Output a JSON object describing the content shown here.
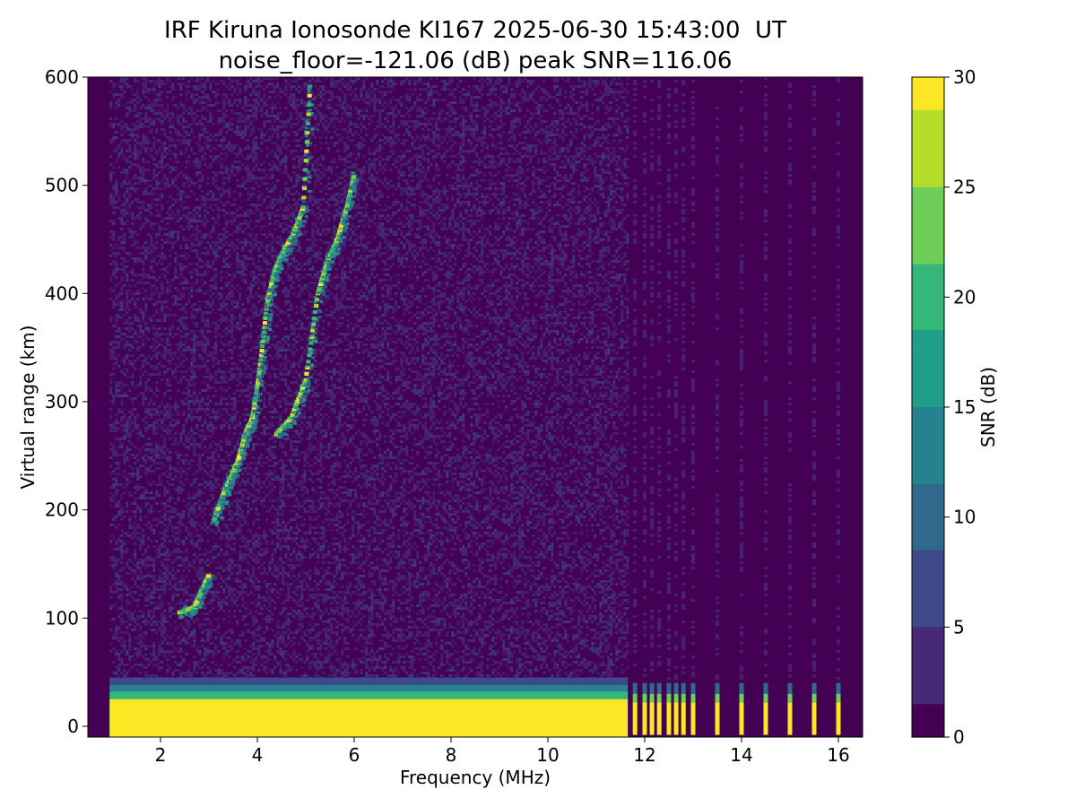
{
  "chart_data": {
    "type": "heatmap",
    "title": "IRF Kiruna Ionosonde KI167 2025-06-30 15:43:00  UT",
    "subtitle": "noise_floor=-121.06 (dB) peak SNR=116.06",
    "xlabel": "Frequency (MHz)",
    "ylabel": "Virtual range (km)",
    "xlim": [
      0.5,
      16.5
    ],
    "ylim": [
      -10,
      600
    ],
    "x_ticks": [
      2,
      4,
      6,
      8,
      10,
      12,
      14,
      16
    ],
    "y_ticks": [
      0,
      100,
      200,
      300,
      400,
      500,
      600
    ],
    "sweep_start_mhz": 0.95,
    "sweep_end_mhz": 16.1,
    "continuous_sweep_end_mhz": 11.65,
    "discrete_channels_mhz": [
      11.8,
      12.0,
      12.15,
      12.3,
      12.5,
      12.65,
      12.8,
      13.0,
      13.5,
      14.0,
      14.5,
      15.0,
      15.5,
      16.0
    ],
    "ground_clutter_top_km": 45,
    "traces": [
      {
        "x": [
          2.4,
          2.7,
          2.85,
          3.0
        ],
        "y": [
          105,
          110,
          125,
          140
        ]
      },
      {
        "x": [
          3.1,
          3.3,
          3.45,
          3.6,
          3.75,
          3.9,
          4.05,
          4.2,
          4.35,
          4.55,
          4.75,
          4.95,
          5.1
        ],
        "y": [
          190,
          215,
          230,
          245,
          270,
          285,
          330,
          390,
          420,
          440,
          455,
          480,
          600
        ]
      },
      {
        "x": [
          4.4,
          4.7,
          5.0,
          5.25,
          5.45,
          5.65,
          5.85,
          6.0
        ],
        "y": [
          270,
          285,
          320,
          400,
          430,
          450,
          480,
          510
        ]
      }
    ],
    "colorbar": {
      "label": "SNR (dB)",
      "range": [
        0,
        30
      ],
      "ticks": [
        0,
        5,
        10,
        15,
        20,
        25,
        30
      ],
      "colormap": [
        "#440154",
        "#482878",
        "#3e4989",
        "#31688e",
        "#26828e",
        "#1f9e89",
        "#35b779",
        "#6ece58",
        "#b5de2b",
        "#fde725"
      ]
    },
    "grid": false,
    "background_color": "#440154"
  }
}
